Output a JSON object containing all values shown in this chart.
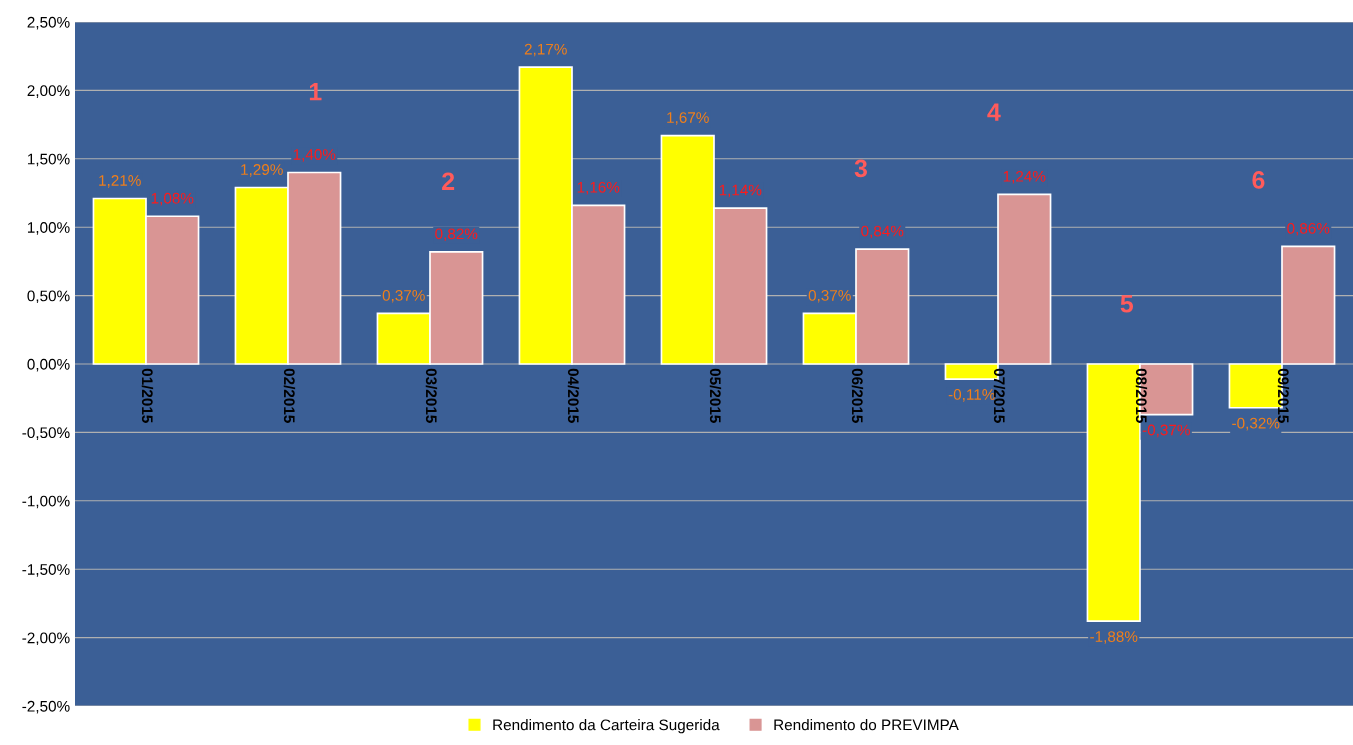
{
  "chart_data": {
    "type": "bar",
    "categories": [
      "01/2015",
      "02/2015",
      "03/2015",
      "04/2015",
      "05/2015",
      "06/2015",
      "07/2015",
      "08/2015",
      "09/2015"
    ],
    "series": [
      {
        "name": "Rendimento da Carteira Sugerida",
        "color": "#ffff00",
        "values": [
          1.21,
          1.29,
          0.37,
          2.17,
          1.67,
          0.37,
          -0.11,
          -1.88,
          -0.32
        ],
        "value_labels": [
          "1,21%",
          "1,29%",
          "0,37%",
          "2,17%",
          "1,67%",
          "0,37%",
          "-0,11%",
          "-1,88%",
          "-0,32%"
        ]
      },
      {
        "name": "Rendimento do PREVIMPA",
        "color": "#d99594",
        "values": [
          1.08,
          1.4,
          0.82,
          1.16,
          1.14,
          0.84,
          1.24,
          -0.37,
          0.86
        ],
        "value_labels": [
          "1,08%",
          "1,40%",
          "0,82%",
          "1,16%",
          "1,14%",
          "0,84%",
          "1,24%",
          "-0,37%",
          "0,86%"
        ]
      }
    ],
    "ylim": [
      -2.5,
      2.5
    ],
    "yticks": [
      {
        "value": -2.5,
        "label": "-2,50%"
      },
      {
        "value": -2.0,
        "label": "-2,00%"
      },
      {
        "value": -1.5,
        "label": "-1,50%"
      },
      {
        "value": -1.0,
        "label": "-1,00%"
      },
      {
        "value": -0.5,
        "label": "-0,50%"
      },
      {
        "value": 0,
        "label": "0,00%"
      },
      {
        "value": 0.5,
        "label": "0,50%"
      },
      {
        "value": 1.0,
        "label": "1,00%"
      },
      {
        "value": 1.5,
        "label": "1,50%"
      },
      {
        "value": 2.0,
        "label": "2,00%"
      },
      {
        "value": 2.5,
        "label": "2,50%"
      }
    ],
    "annotations": [
      "1",
      "2",
      "3",
      "4",
      "5",
      "6"
    ],
    "grid": "y",
    "legend": "bottom"
  }
}
